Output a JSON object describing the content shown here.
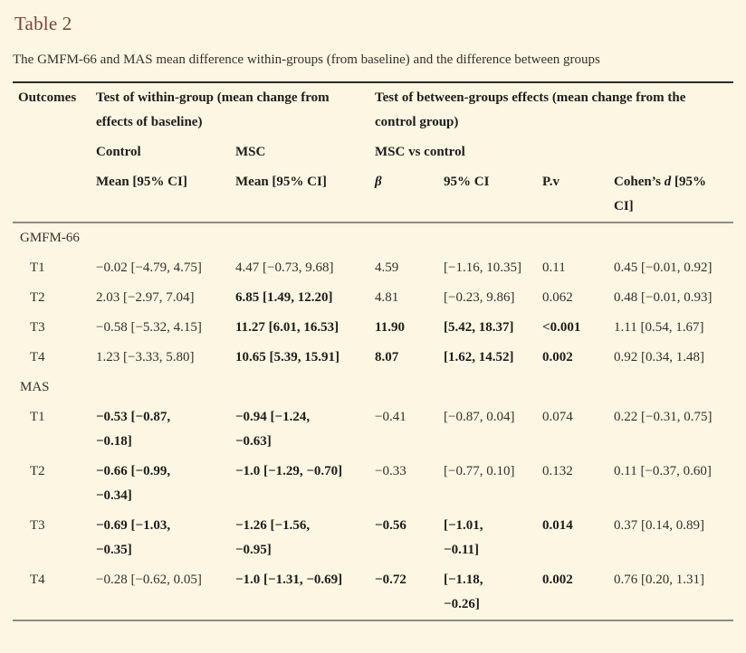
{
  "page": {
    "title": "Table 2",
    "subtitle": "The GMFM-66 and MAS mean difference within-groups (from baseline) and the difference between groups"
  },
  "colors": {
    "background": "#fdf6e3",
    "title": "#7a4633",
    "text": "#33312c",
    "rule_top": "#2e2c28",
    "rule_gray": "#8d8d85"
  },
  "table": {
    "header": {
      "outcomes": "Outcomes",
      "within_group": "Test of within-group (mean change from effects of baseline)",
      "between_groups": "Test of between-groups effects (mean change from the control group)",
      "control": "Control",
      "msc": "MSC",
      "msc_vs_control": "MSC vs control",
      "mean_ci_control": "Mean [95% CI]",
      "mean_ci_msc": "Mean [95% CI]",
      "beta": "β",
      "ci": "95% CI",
      "pv": "P.v",
      "cohens_pre": "Cohen’s ",
      "cohens_d": "d",
      "cohens_post": " [95% CI]"
    },
    "column_keys": [
      "control-mean",
      "msc-mean",
      "beta",
      "ci",
      "pv",
      "cohens-d"
    ],
    "sections": [
      {
        "label": "GMFM-66",
        "rows": [
          {
            "time": "T1",
            "cells": [
              {
                "t": "−0.02 [−4.79, 4.75]",
                "b": false
              },
              {
                "t": "4.47 [−0.73, 9.68]",
                "b": false
              },
              {
                "t": "4.59",
                "b": false
              },
              {
                "t": "[−1.16, 10.35]",
                "b": false
              },
              {
                "t": "0.11",
                "b": false
              },
              {
                "t": "0.45 [−0.01, 0.92]",
                "b": false
              }
            ]
          },
          {
            "time": "T2",
            "cells": [
              {
                "t": "2.03 [−2.97, 7.04]",
                "b": false
              },
              {
                "t": "6.85 [1.49, 12.20]",
                "b": true
              },
              {
                "t": "4.81",
                "b": false
              },
              {
                "t": "[−0.23, 9.86]",
                "b": false
              },
              {
                "t": "0.062",
                "b": false
              },
              {
                "t": "0.48 [−0.01, 0.93]",
                "b": false
              }
            ]
          },
          {
            "time": "T3",
            "cells": [
              {
                "t": "−0.58 [−5.32, 4.15]",
                "b": false
              },
              {
                "t": "11.27 [6.01, 16.53]",
                "b": true
              },
              {
                "t": "11.90",
                "b": true
              },
              {
                "t": "[5.42, 18.37]",
                "b": true
              },
              {
                "t": "<0.001",
                "b": true
              },
              {
                "t": "1.11 [0.54, 1.67]",
                "b": false
              }
            ]
          },
          {
            "time": "T4",
            "cells": [
              {
                "t": "1.23 [−3.33, 5.80]",
                "b": false
              },
              {
                "t": "10.65 [5.39, 15.91]",
                "b": true
              },
              {
                "t": "8.07",
                "b": true
              },
              {
                "t": "[1.62, 14.52]",
                "b": true
              },
              {
                "t": "0.002",
                "b": true
              },
              {
                "t": "0.92 [0.34, 1.48]",
                "b": false
              }
            ]
          }
        ]
      },
      {
        "label": "MAS",
        "rows": [
          {
            "time": "T1",
            "cells": [
              {
                "t": "−0.53 [−0.87,\n−0.18]",
                "b": true
              },
              {
                "t": "−0.94 [−1.24,\n−0.63]",
                "b": true
              },
              {
                "t": "−0.41",
                "b": false
              },
              {
                "t": "[−0.87, 0.04]",
                "b": false
              },
              {
                "t": "0.074",
                "b": false
              },
              {
                "t": "0.22 [−0.31, 0.75]",
                "b": false
              }
            ]
          },
          {
            "time": "T2",
            "cells": [
              {
                "t": "−0.66 [−0.99,\n−0.34]",
                "b": true
              },
              {
                "t": "−1.0 [−1.29, −0.70]",
                "b": true
              },
              {
                "t": "−0.33",
                "b": false
              },
              {
                "t": "[−0.77, 0.10]",
                "b": false
              },
              {
                "t": "0.132",
                "b": false
              },
              {
                "t": "0.11 [−0.37, 0.60]",
                "b": false
              }
            ]
          },
          {
            "time": "T3",
            "cells": [
              {
                "t": "−0.69 [−1.03,\n−0.35]",
                "b": true
              },
              {
                "t": "−1.26 [−1.56,\n−0.95]",
                "b": true
              },
              {
                "t": "−0.56",
                "b": true
              },
              {
                "t": "[−1.01,\n−0.11]",
                "b": true
              },
              {
                "t": "0.014",
                "b": true
              },
              {
                "t": "0.37 [0.14, 0.89]",
                "b": false
              }
            ]
          },
          {
            "time": "T4",
            "cells": [
              {
                "t": "−0.28 [−0.62, 0.05]",
                "b": false
              },
              {
                "t": "−1.0 [−1.31, −0.69]",
                "b": true
              },
              {
                "t": "−0.72",
                "b": true
              },
              {
                "t": "[−1.18,\n−0.26]",
                "b": true
              },
              {
                "t": "0.002",
                "b": true
              },
              {
                "t": "0.76 [0.20, 1.31]",
                "b": false
              }
            ]
          }
        ]
      }
    ]
  }
}
